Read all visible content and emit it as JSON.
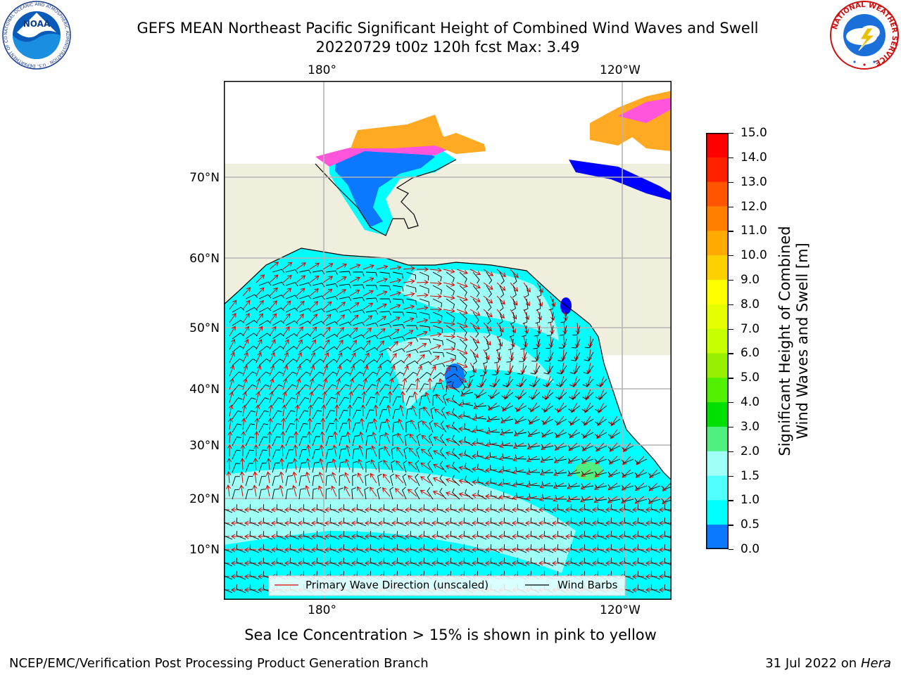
{
  "header": {
    "title_line1": "GEFS MEAN Northeast Pacific Significant Height of Combined Wind Waves and Swell",
    "title_line2": "20220729 t00z 120h fcst   Max: 3.49"
  },
  "logos": {
    "left_name": "NOAA",
    "left_ring_text": "NATIONAL OCEANIC AND ATMOSPHERIC ADMINISTRATION · U.S. DEPARTMENT OF COMMERCE",
    "right_ring_text": "NATIONAL WEATHER SERVICE"
  },
  "map": {
    "lon_labels_top": [
      "180°",
      "120°W"
    ],
    "lon_labels_bottom": [
      "180°",
      "120°W"
    ],
    "lat_labels": [
      "70°N",
      "60°N",
      "50°N",
      "40°N",
      "30°N",
      "20°N",
      "10°N"
    ],
    "legend": {
      "wave_label": "Primary Wave Direction (unscaled)",
      "wind_label": "Wind Barbs"
    },
    "colors": {
      "land": "#f0eedc",
      "ocean_main": "#00ffff",
      "ocean_light": "#9ffff7",
      "ocean_low": "#0a78ff",
      "ocean_verylow": "#0000ff",
      "ice_pink": "#ff55dd",
      "ice_orange": "#ffaa22",
      "wave_arrow": "#e00000",
      "barb": "#000000"
    }
  },
  "colorbar": {
    "label": "Significant Height of Combined Wind Waves and Swell [m]",
    "ticks": [
      "15.0",
      "14.0",
      "13.0",
      "12.0",
      "11.0",
      "10.0",
      "9.0",
      "8.0",
      "7.0",
      "6.0",
      "5.0",
      "4.0",
      "3.0",
      "2.0",
      "1.5",
      "1.0",
      "0.5",
      "0.0"
    ],
    "colors_top_to_bottom": [
      "#ff0000",
      "#ff2000",
      "#ff5500",
      "#ff8000",
      "#ffaa00",
      "#ffd000",
      "#ffff00",
      "#e6ff00",
      "#c8ff00",
      "#96f000",
      "#50f000",
      "#00e000",
      "#50f080",
      "#a0fff8",
      "#50ffff",
      "#00ffff",
      "#0a78ff",
      "#0000ff"
    ]
  },
  "notes": {
    "ice_note": "Sea Ice Concentration > 15% is shown in pink to yellow"
  },
  "footer": {
    "left": "NCEP/EMC/Verification Post Processing Product Generation Branch",
    "right_date": "31 Jul 2022 on ",
    "right_host": "Hera"
  }
}
